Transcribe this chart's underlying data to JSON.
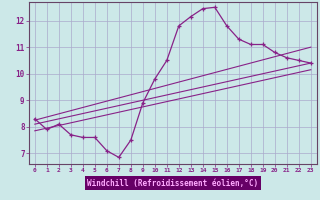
{
  "title": "",
  "xlabel": "Windchill (Refroidissement éolien,°C)",
  "ylabel": "",
  "bg_color": "#cce8e8",
  "xlabel_bg_color": "#660066",
  "xlabel_text_color": "#ffaaff",
  "grid_color": "#aaaacc",
  "line_color": "#882288",
  "spine_color": "#664466",
  "xlim": [
    -0.5,
    23.5
  ],
  "ylim": [
    6.6,
    12.7
  ],
  "xticks": [
    0,
    1,
    2,
    3,
    4,
    5,
    6,
    7,
    8,
    9,
    10,
    11,
    12,
    13,
    14,
    15,
    16,
    17,
    18,
    19,
    20,
    21,
    22,
    23
  ],
  "yticks": [
    7,
    8,
    9,
    10,
    11,
    12
  ],
  "main_x": [
    0,
    1,
    2,
    3,
    4,
    5,
    6,
    7,
    8,
    9,
    10,
    11,
    12,
    13,
    14,
    15,
    16,
    17,
    18,
    19,
    20,
    21,
    22,
    23
  ],
  "main_y": [
    8.3,
    7.9,
    8.1,
    7.7,
    7.6,
    7.6,
    7.1,
    6.85,
    7.5,
    8.9,
    9.8,
    10.5,
    11.8,
    12.15,
    12.45,
    12.5,
    11.8,
    11.3,
    11.1,
    11.1,
    10.8,
    10.6,
    10.5,
    10.4
  ],
  "line1_x": [
    0,
    23
  ],
  "line1_y": [
    8.1,
    10.4
  ],
  "line2_x": [
    0,
    23
  ],
  "line2_y": [
    7.85,
    10.15
  ],
  "line3_x": [
    0,
    23
  ],
  "line3_y": [
    8.25,
    11.0
  ]
}
